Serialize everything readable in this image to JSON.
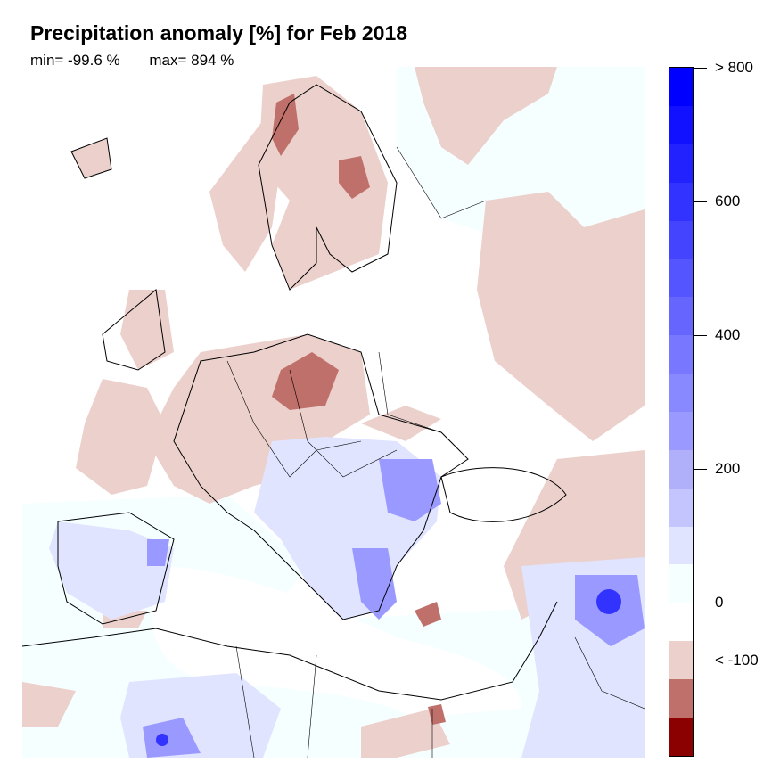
{
  "title": "Precipitation anomaly [%] for Feb 2018",
  "stats": {
    "min": "min= -99.6 %",
    "max": "max= 894 %"
  },
  "colorbar": {
    "colors": [
      "#0000ff",
      "#1111ff",
      "#2222ff",
      "#3333ff",
      "#4444ff",
      "#5555ff",
      "#6666ff",
      "#7777ff",
      "#8888ff",
      "#9999ff",
      "#b0b0fa",
      "#c4c4ff",
      "#e0e4ff",
      "#f5ffff",
      "#ffffff",
      "#ebd0cc",
      "#c0706a",
      "#8b0000"
    ],
    "labels": [
      {
        "text": "> 800",
        "value": 800
      },
      {
        "text": "600",
        "value": 600
      },
      {
        "text": "400",
        "value": 400
      },
      {
        "text": "200",
        "value": 200
      },
      {
        "text": "0",
        "value": 0
      },
      {
        "text": "< -100",
        "value": -100
      }
    ]
  },
  "palette": {
    "dry_light": "#ebd0cc",
    "dry_dark": "#c0706a",
    "wet_light": "#e0e4ff",
    "wet_mid": "#9999ff",
    "wet_strong": "#3333ff",
    "near_zero": "#f5ffff"
  }
}
